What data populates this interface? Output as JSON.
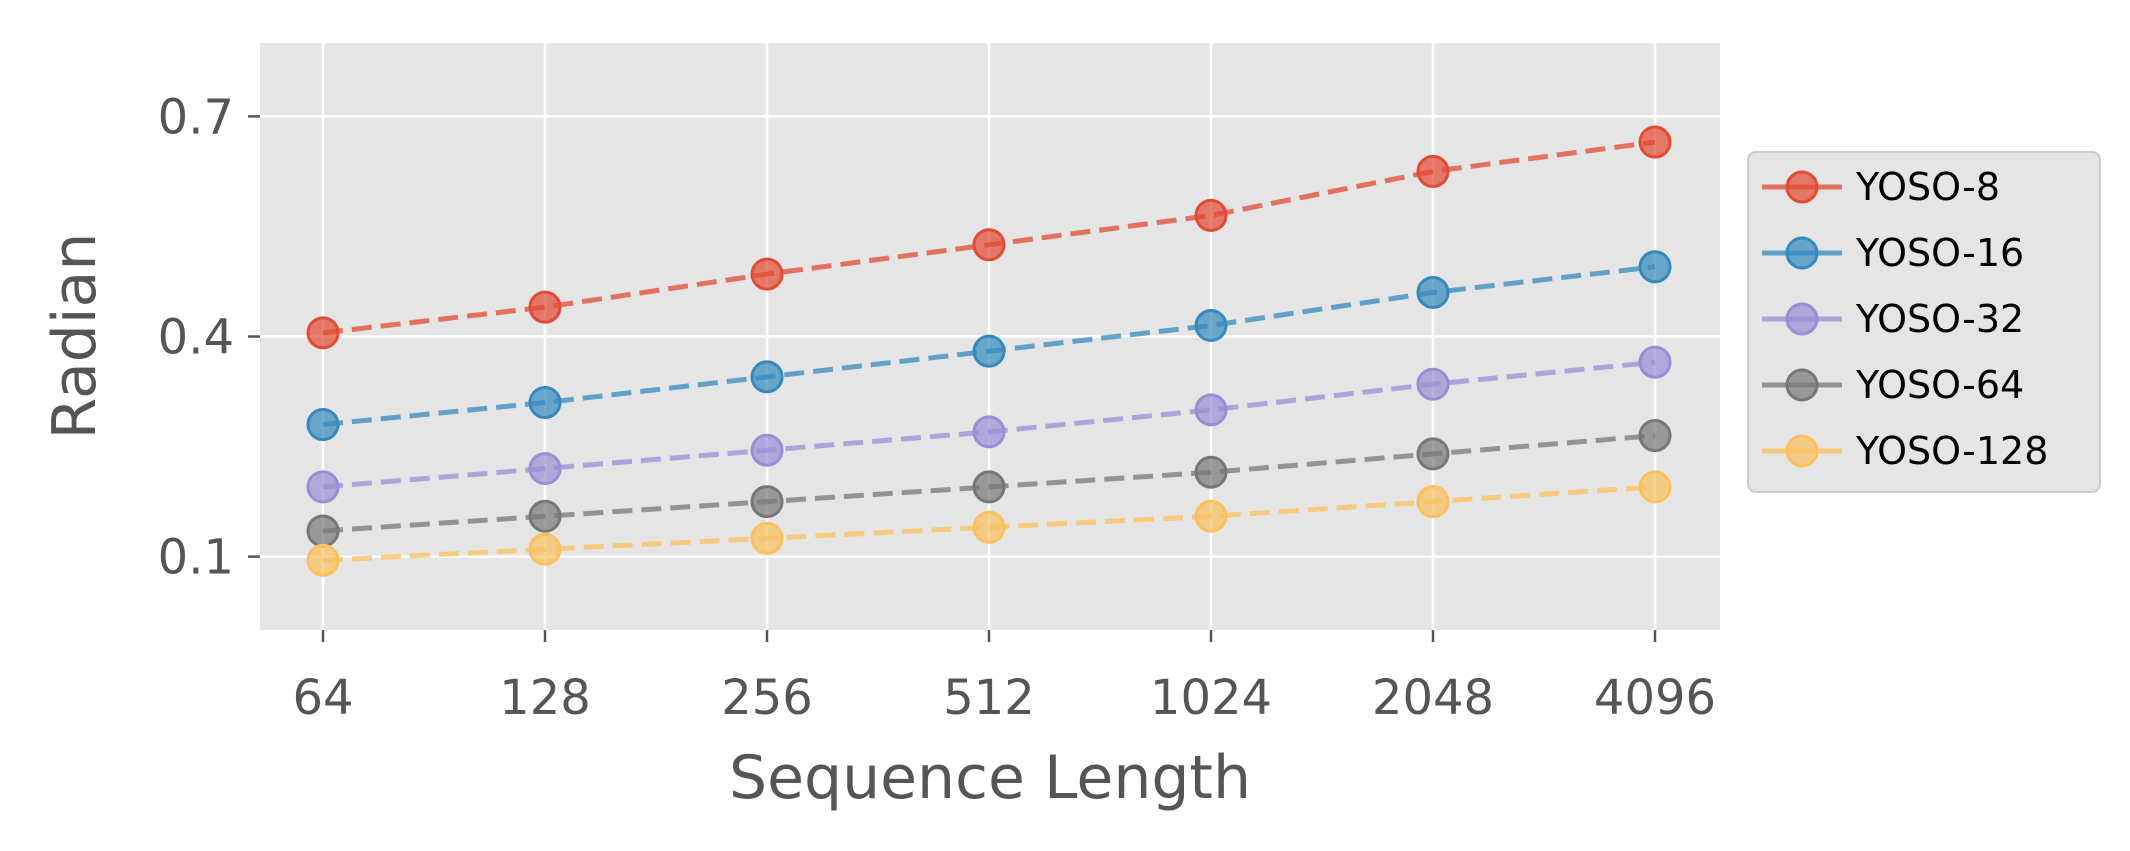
{
  "chart_data": {
    "type": "line",
    "title": "",
    "xlabel": "Sequence Length",
    "ylabel": "Radian",
    "categories": [
      "64",
      "128",
      "256",
      "512",
      "1024",
      "2048",
      "4096"
    ],
    "yticks": [
      "0.1",
      "0.4",
      "0.7"
    ],
    "ylim": [
      0.0,
      0.8
    ],
    "grid": true,
    "legend_position": "right",
    "series": [
      {
        "name": "YOSO-8",
        "color": "#E24A33",
        "values": [
          0.405,
          0.44,
          0.485,
          0.525,
          0.565,
          0.625,
          0.665
        ]
      },
      {
        "name": "YOSO-16",
        "color": "#348ABD",
        "values": [
          0.28,
          0.31,
          0.345,
          0.38,
          0.415,
          0.46,
          0.495
        ]
      },
      {
        "name": "YOSO-32",
        "color": "#988ED5",
        "values": [
          0.195,
          0.22,
          0.245,
          0.27,
          0.3,
          0.335,
          0.365
        ]
      },
      {
        "name": "YOSO-64",
        "color": "#777777",
        "values": [
          0.135,
          0.155,
          0.175,
          0.195,
          0.215,
          0.24,
          0.265
        ]
      },
      {
        "name": "YOSO-128",
        "color": "#FBC15E",
        "values": [
          0.095,
          0.11,
          0.125,
          0.14,
          0.155,
          0.175,
          0.195
        ]
      }
    ]
  }
}
